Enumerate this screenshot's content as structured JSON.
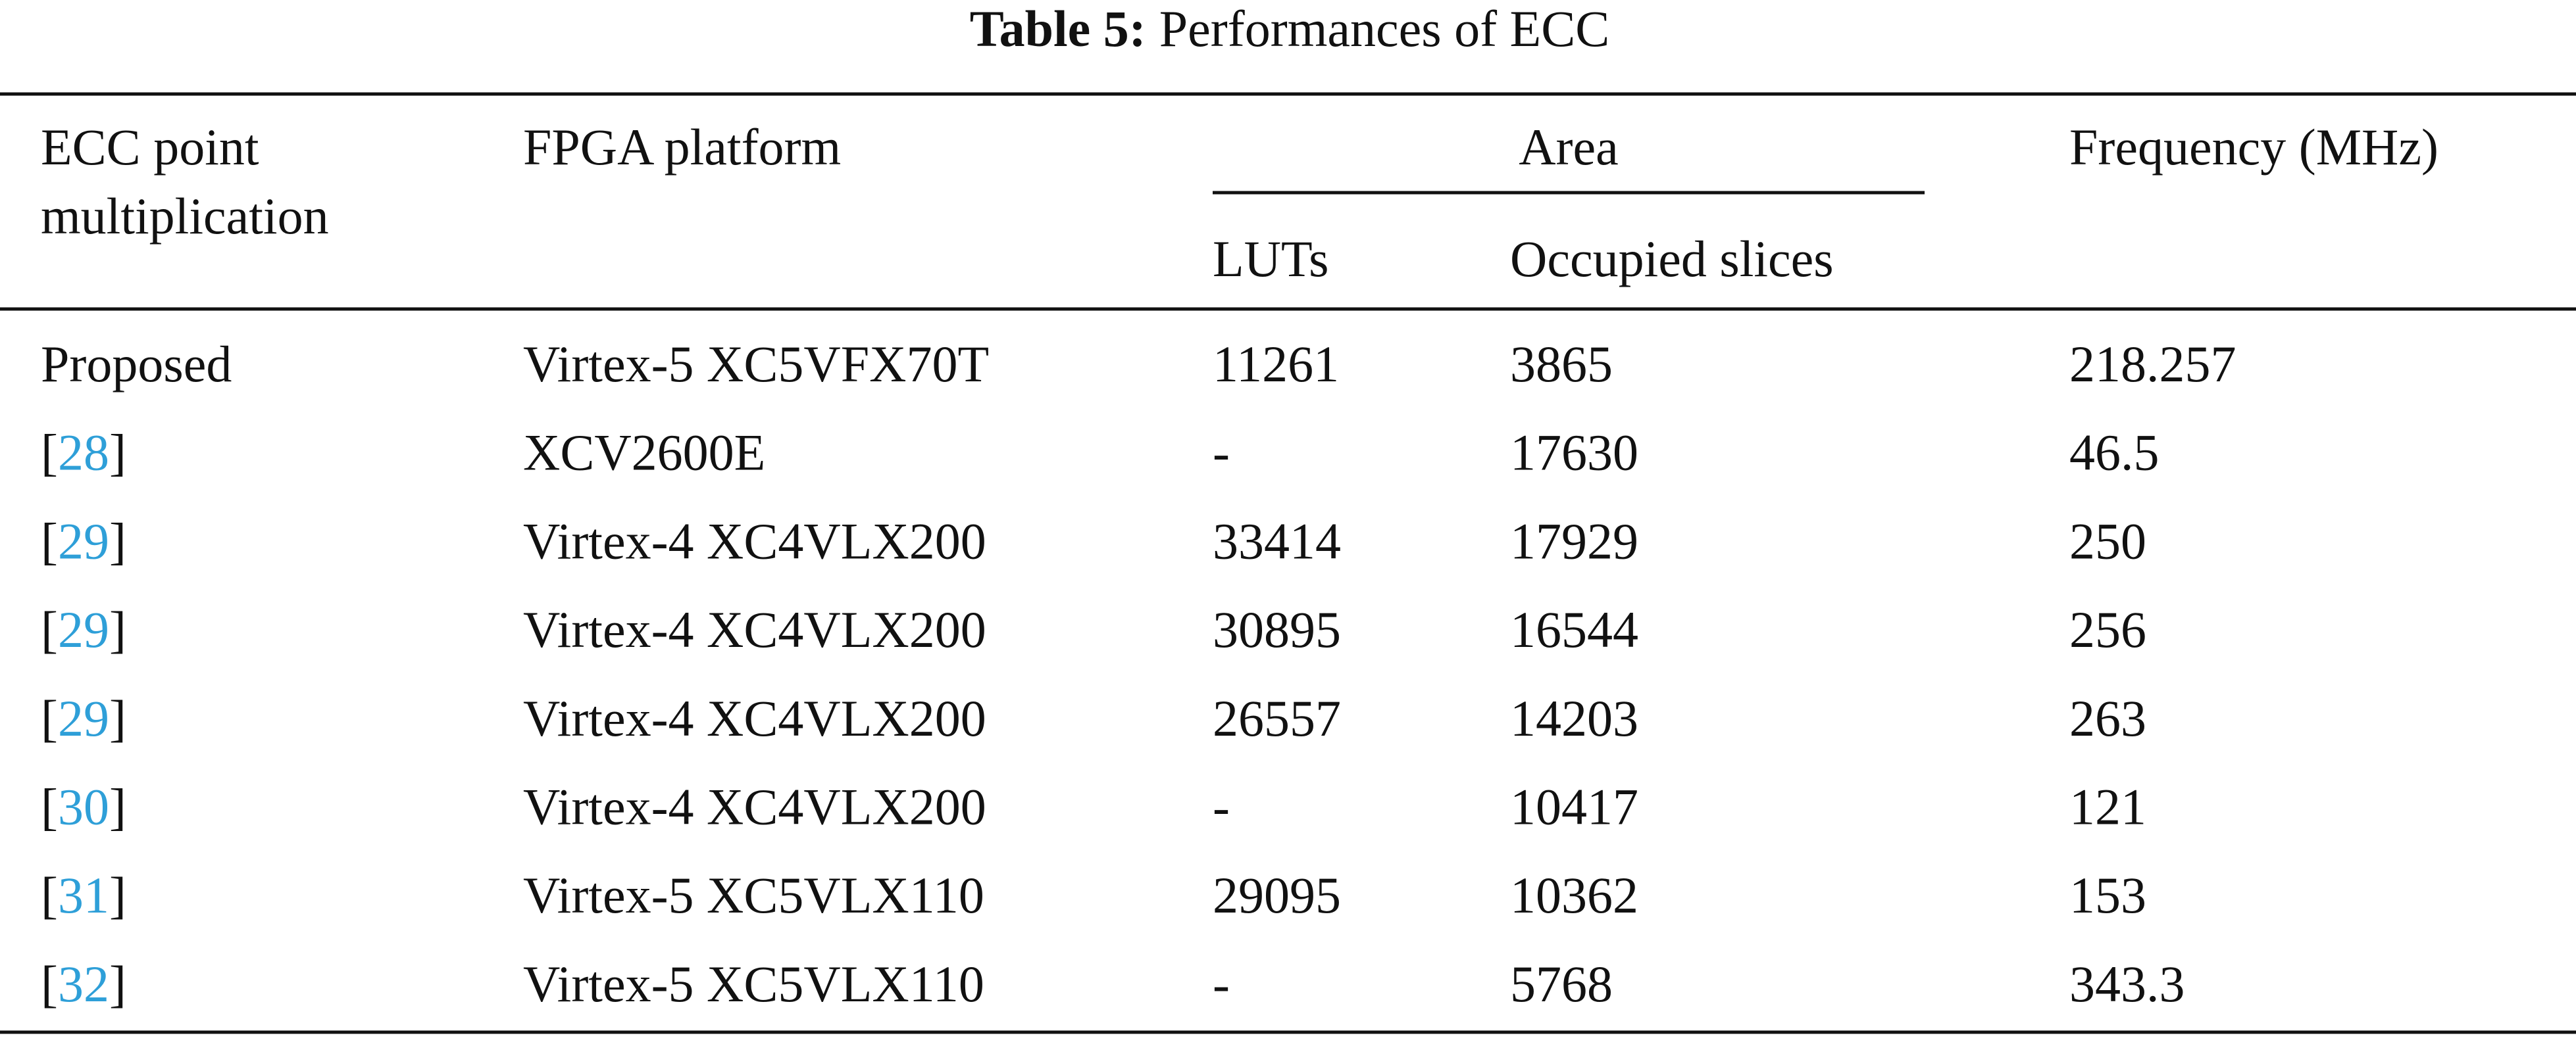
{
  "caption": {
    "label": "Table 5:",
    "text": "Performances of ECC"
  },
  "table": {
    "header": {
      "ecc": [
        "ECC point",
        "multiplication"
      ],
      "platform": "FPGA platform",
      "area": "Area",
      "luts": "LUTs",
      "slices": "Occupied slices",
      "frequency": "Frequency (MHz)"
    },
    "rows": [
      [
        "Proposed",
        "Virtex-5 XC5VFX70T",
        "11261",
        "3865",
        "218.257"
      ],
      [
        [
          "[",
          "28",
          "]"
        ],
        "XCV2600E",
        "-",
        "17630",
        "46.5"
      ],
      [
        [
          "[",
          "29",
          "]"
        ],
        "Virtex-4 XC4VLX200",
        "33414",
        "17929",
        "250"
      ],
      [
        [
          "[",
          "29",
          "]"
        ],
        "Virtex-4 XC4VLX200",
        "30895",
        "16544",
        "256"
      ],
      [
        [
          "[",
          "29",
          "]"
        ],
        "Virtex-4 XC4VLX200",
        "26557",
        "14203",
        "263"
      ],
      [
        [
          "[",
          "30",
          "]"
        ],
        "Virtex-4 XC4VLX200",
        "-",
        "10417",
        "121"
      ],
      [
        [
          "[",
          "31",
          "]"
        ],
        "Virtex-5 XC5VLX110",
        "29095",
        "10362",
        "153"
      ],
      [
        [
          "[",
          "32",
          "]"
        ],
        "Virtex-5 XC5VLX110",
        "-",
        "5768",
        "343.3"
      ]
    ]
  }
}
